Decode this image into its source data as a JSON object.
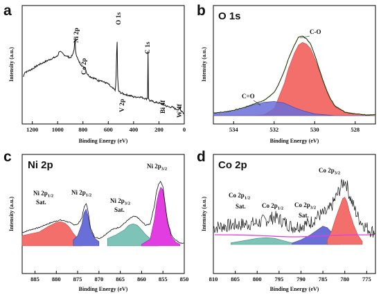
{
  "chart_data": [
    {
      "panel": "a",
      "type": "line",
      "title": "",
      "xlabel": "Binding Energy (eV)",
      "ylabel": "Intensity (a.u.)",
      "xlim": [
        1280,
        0
      ],
      "ylim": [
        0,
        100
      ],
      "x_ticks": [
        1200,
        1000,
        800,
        600,
        400,
        200,
        0
      ],
      "grid": false,
      "series": [
        {
          "x": [
            1270,
            1260,
            1245,
            1230,
            1200,
            1150,
            1100,
            1050,
            1010,
            1000,
            985,
            970,
            950,
            900,
            880,
            870,
            862,
            858,
            855,
            850,
            842,
            835,
            820,
            800,
            790,
            785,
            780,
            775,
            770,
            760,
            740,
            720,
            700,
            680,
            660,
            650,
            640,
            620,
            600,
            580,
            560,
            545,
            540,
            535,
            531,
            528,
            520,
            510,
            500,
            480,
            450,
            420,
            400,
            380,
            350,
            320,
            300,
            290,
            287,
            285,
            282,
            278,
            270,
            260,
            240,
            200,
            180,
            160,
            150,
            145,
            120,
            100,
            80,
            70,
            60,
            40,
            35,
            30,
            20,
            10,
            5
          ],
          "y": [
            40,
            45,
            45,
            46,
            48,
            52,
            55,
            58,
            60,
            61,
            66,
            64,
            62,
            59,
            62,
            68,
            78,
            66,
            64,
            61,
            58,
            56,
            53,
            50,
            49,
            51,
            48,
            46,
            44,
            42,
            40,
            39,
            38,
            36,
            37,
            36,
            35,
            34,
            33,
            30,
            28,
            27,
            32,
            55,
            90,
            45,
            26,
            25,
            24,
            23,
            22,
            21,
            20,
            20,
            20,
            19,
            18,
            19,
            70,
            62,
            19,
            17,
            16,
            16,
            15,
            14,
            13,
            12,
            12,
            11,
            10,
            10,
            9,
            8,
            8,
            7,
            10,
            7,
            6,
            5,
            3
          ]
        }
      ],
      "annotations": [
        "Ni 2p",
        "Co 2p",
        "O 1s",
        "V 2p",
        "C 1s",
        "Bi 4f",
        "W 4f"
      ]
    },
    {
      "panel": "b",
      "type": "line",
      "title": "O 1s",
      "xlabel": "Binding Energy (eV)",
      "ylabel": "Intensity (a.u.)",
      "xlim": [
        535,
        527
      ],
      "ylim": [
        0,
        100
      ],
      "x_ticks": [
        534,
        532,
        530,
        528
      ],
      "grid": false,
      "series": [
        {
          "x": [
            535.0,
            534.5,
            534.0,
            533.5,
            533.0,
            532.5,
            532.0,
            531.8,
            531.5,
            531.3,
            531.0,
            530.8,
            530.6,
            530.4,
            530.2,
            530.0,
            529.8,
            529.6,
            529.4,
            529.2,
            529.0,
            528.5,
            528.0,
            527.5,
            527.0
          ],
          "y": [
            3,
            4,
            6,
            9,
            13,
            17,
            26,
            34,
            50,
            63,
            79,
            88,
            89,
            86,
            80,
            68,
            54,
            40,
            28,
            18,
            11,
            4,
            2,
            1,
            1
          ]
        },
        {
          "x": [
            535.0,
            534.5,
            534.0,
            533.5,
            533.0,
            532.5,
            532.0,
            531.8,
            531.5,
            531.3,
            531.0,
            530.8,
            530.6,
            530.4,
            530.2,
            530.0,
            529.8,
            529.6,
            529.4,
            529.2,
            529.0,
            528.5,
            528.0,
            527.5,
            527.0
          ],
          "y": [
            0,
            0,
            0,
            0,
            0,
            1,
            8,
            19,
            36,
            52,
            70,
            79,
            82,
            80,
            75,
            64,
            52,
            38,
            27,
            17,
            10,
            4,
            2,
            1,
            0
          ]
        },
        {
          "x": [
            535.0,
            534.5,
            534.0,
            533.5,
            533.0,
            532.5,
            532.0,
            531.5,
            531.0,
            530.5,
            530.0,
            529.5,
            529.0,
            528.5,
            528.0,
            527.5,
            527.0
          ],
          "y": [
            3,
            4,
            6,
            9,
            12,
            15,
            16,
            14,
            9,
            5,
            2,
            1,
            0,
            0,
            0,
            0,
            0
          ]
        }
      ],
      "annotations": [
        "C-O",
        "C=O"
      ]
    },
    {
      "panel": "c",
      "type": "line",
      "title": "Ni 2p",
      "xlabel": "Binding Energy (eV)",
      "ylabel": "Intensity (a.u.)",
      "xlim": [
        888,
        850
      ],
      "ylim": [
        0,
        100
      ],
      "x_ticks": [
        885,
        880,
        875,
        870,
        865,
        860,
        855,
        850
      ],
      "grid": false,
      "series": [
        {
          "x": [
            888,
            886,
            884,
            882,
            880,
            879,
            878,
            877,
            876,
            875,
            874,
            873.5,
            873,
            872.5,
            872,
            871,
            870,
            869,
            868,
            867,
            866,
            865,
            864,
            863,
            862,
            861,
            860,
            859,
            858,
            857,
            856.5,
            856,
            855.5,
            855,
            854.5,
            854,
            853,
            852,
            851,
            850
          ],
          "y": [
            18,
            22,
            25,
            30,
            34,
            35,
            34,
            32,
            29,
            29,
            38,
            52,
            58,
            46,
            24,
            12,
            10,
            13,
            18,
            22,
            24,
            26,
            31,
            36,
            40,
            39,
            33,
            28,
            30,
            55,
            74,
            84,
            88,
            80,
            58,
            36,
            14,
            8,
            4,
            3
          ]
        },
        {
          "x": [
            888,
            884,
            882,
            880,
            879,
            878,
            877,
            876,
            875,
            874
          ],
          "y": [
            14,
            19,
            26,
            32,
            33,
            31,
            26,
            17,
            10,
            6
          ]
        },
        {
          "x": [
            876,
            875,
            874,
            873.5,
            873,
            872.5,
            872,
            871,
            870
          ],
          "y": [
            8,
            14,
            30,
            45,
            50,
            40,
            22,
            10,
            6
          ]
        },
        {
          "x": [
            868,
            866,
            864,
            863,
            862,
            861,
            860,
            859,
            858,
            857,
            856
          ],
          "y": [
            10,
            15,
            22,
            28,
            30,
            28,
            22,
            15,
            10,
            6,
            4
          ]
        },
        {
          "x": [
            860,
            858,
            857,
            856.5,
            856,
            855.5,
            855,
            854.5,
            854,
            853,
            852,
            851
          ],
          "y": [
            2,
            9,
            36,
            58,
            72,
            80,
            76,
            55,
            33,
            12,
            5,
            2
          ]
        }
      ],
      "annotations": [
        "Ni 2p1/2",
        "Sat.",
        "Ni 2p1/2",
        "Ni 2p3/2",
        "Ni 2p3/2"
      ]
    },
    {
      "panel": "d",
      "type": "line",
      "title": "Co 2p",
      "xlabel": "Binding Energy (eV)",
      "ylabel": "Intensity (a.u.)",
      "xlim": [
        810,
        773
      ],
      "ylim": [
        0,
        100
      ],
      "x_ticks": [
        810,
        805,
        800,
        795,
        790,
        785,
        780,
        775
      ],
      "grid": false,
      "series": [
        {
          "x": [
            810,
            808,
            806,
            804,
            802,
            800,
            798,
            796,
            794,
            792,
            790,
            788,
            787,
            786,
            785,
            784,
            783,
            782,
            781,
            780.5,
            780,
            779.5,
            779,
            778,
            777,
            776,
            775,
            774,
            773
          ],
          "y": [
            22,
            24,
            25,
            26,
            27,
            28,
            32,
            36,
            30,
            23,
            25,
            28,
            33,
            38,
            40,
            42,
            50,
            62,
            74,
            80,
            84,
            78,
            66,
            50,
            36,
            28,
            22,
            18,
            17
          ]
        },
        {
          "x": [
            806,
            804,
            802,
            800,
            798,
            796,
            794,
            792
          ],
          "y": [
            2,
            4,
            6,
            8,
            9,
            8,
            5,
            2
          ]
        },
        {
          "x": [
            792,
            790,
            788,
            786,
            785,
            784,
            783,
            782,
            781
          ],
          "y": [
            2,
            6,
            12,
            20,
            24,
            22,
            16,
            8,
            3
          ]
        },
        {
          "x": [
            784,
            783,
            782,
            781,
            780.5,
            780,
            779.5,
            779,
            778,
            777,
            776
          ],
          "y": [
            6,
            18,
            36,
            52,
            60,
            62,
            56,
            44,
            26,
            12,
            4
          ]
        }
      ],
      "annotations": [
        "Co 2p1/2",
        "Sat.",
        "Co 2p1/2",
        "Co 2p3/2",
        "Sat.",
        "Co 2p3/2"
      ]
    }
  ],
  "panels": {
    "a": {
      "label": "a"
    },
    "b": {
      "label": "b",
      "title": "O 1s",
      "ann_co": "C-O",
      "ann_c_o": "C=O"
    },
    "c": {
      "label": "c",
      "title": "Ni 2p",
      "sat": "Sat."
    },
    "d": {
      "label": "d",
      "title": "Co 2p",
      "sat1": "Sat.",
      "sat2": "Sat."
    }
  },
  "colors": {
    "red_fill": "#f26f6c",
    "blue_fill": "#6a6fd8",
    "teal_fill": "#6fbdb0",
    "magenta_fill": "#e23de0",
    "purple_fill": "#7d3aa8",
    "envelope_green": "#7a9a3a",
    "raw_line": "#111111"
  }
}
